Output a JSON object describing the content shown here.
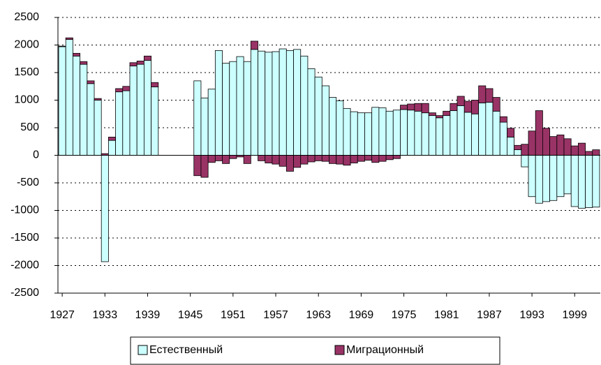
{
  "chart_data": {
    "type": "stacked_bar",
    "x": [
      1927,
      1928,
      1929,
      1930,
      1931,
      1932,
      1933,
      1934,
      1935,
      1936,
      1937,
      1938,
      1939,
      1940,
      1941,
      1942,
      1943,
      1944,
      1945,
      1946,
      1947,
      1948,
      1949,
      1950,
      1951,
      1952,
      1953,
      1954,
      1955,
      1956,
      1957,
      1958,
      1959,
      1960,
      1961,
      1962,
      1963,
      1964,
      1965,
      1966,
      1967,
      1968,
      1969,
      1970,
      1971,
      1972,
      1973,
      1974,
      1975,
      1976,
      1977,
      1978,
      1979,
      1980,
      1981,
      1982,
      1983,
      1984,
      1985,
      1986,
      1987,
      1988,
      1989,
      1990,
      1991,
      1992,
      1993,
      1994,
      1995,
      1996,
      1997,
      1998,
      1999,
      2000,
      2001,
      2002
    ],
    "series": [
      {
        "name": "Естественный",
        "color": "#ccffff",
        "values": [
          1970,
          2100,
          1800,
          1650,
          1300,
          1000,
          -1930,
          270,
          1150,
          1170,
          1620,
          1650,
          1720,
          1240,
          null,
          null,
          null,
          null,
          null,
          1350,
          1040,
          1200,
          1900,
          1670,
          1700,
          1790,
          1700,
          1920,
          1890,
          1870,
          1880,
          1930,
          1900,
          1920,
          1800,
          1570,
          1420,
          1260,
          1050,
          990,
          850,
          790,
          770,
          770,
          870,
          860,
          800,
          820,
          830,
          820,
          800,
          770,
          720,
          680,
          720,
          810,
          900,
          780,
          750,
          950,
          960,
          800,
          600,
          330,
          100,
          -210,
          -750,
          -870,
          -840,
          -820,
          -750,
          -700,
          -930,
          -960,
          -950,
          -940
        ]
      },
      {
        "name": "Миграционный",
        "color": "#993366",
        "values": [
          10,
          30,
          50,
          50,
          50,
          30,
          30,
          60,
          60,
          80,
          60,
          60,
          80,
          80,
          null,
          null,
          null,
          null,
          null,
          -370,
          -400,
          -130,
          -100,
          -150,
          -60,
          -30,
          -150,
          150,
          -100,
          -140,
          -160,
          -200,
          -290,
          -220,
          -160,
          -120,
          -100,
          -110,
          -150,
          -160,
          -180,
          -140,
          -110,
          -90,
          -130,
          -110,
          -80,
          -60,
          80,
          110,
          140,
          170,
          50,
          40,
          80,
          130,
          170,
          200,
          250,
          310,
          250,
          250,
          100,
          160,
          80,
          200,
          440,
          810,
          490,
          340,
          370,
          300,
          170,
          220,
          70,
          100
        ]
      }
    ],
    "xlim": [
      1926.4,
      2002.6
    ],
    "xticks": [
      1927,
      1933,
      1939,
      1945,
      1951,
      1957,
      1963,
      1969,
      1975,
      1981,
      1987,
      1993,
      1999
    ],
    "ylim": [
      -2500,
      2500
    ],
    "yticks": [
      -2500,
      -2000,
      -1500,
      -1000,
      -500,
      0,
      500,
      1000,
      1500,
      2000,
      2500
    ],
    "grid": true,
    "legend": "bottom"
  }
}
